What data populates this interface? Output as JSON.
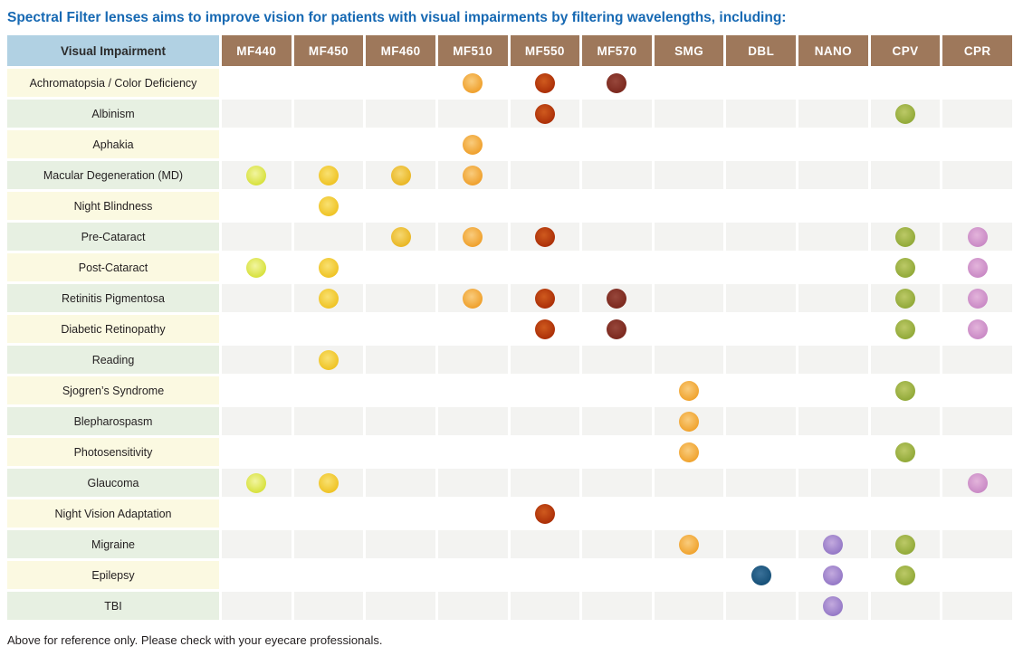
{
  "title": "Spectral Filter lenses aims to improve vision for patients with visual impairments by filtering wavelengths, including:",
  "footnote": "Above for reference only. Please check with your eyecare professionals.",
  "chart_data": {
    "type": "table",
    "header_label": "Visual Impairment",
    "columns": [
      "MF440",
      "MF450",
      "MF460",
      "MF510",
      "MF550",
      "MF570",
      "SMG",
      "DBL",
      "NANO",
      "CPV",
      "CPR"
    ],
    "rows": [
      {
        "label": "Achromatopsia / Color Deficiency",
        "dots": [
          "MF510",
          "MF550",
          "MF570"
        ]
      },
      {
        "label": "Albinism",
        "dots": [
          "MF550",
          "CPV"
        ]
      },
      {
        "label": "Aphakia",
        "dots": [
          "MF510"
        ]
      },
      {
        "label": "Macular Degeneration (MD)",
        "dots": [
          "MF440",
          "MF450",
          "MF460",
          "MF510"
        ]
      },
      {
        "label": "Night Blindness",
        "dots": [
          "MF450"
        ]
      },
      {
        "label": "Pre-Cataract",
        "dots": [
          "MF460",
          "MF510",
          "MF550",
          "CPV",
          "CPR"
        ]
      },
      {
        "label": "Post-Cataract",
        "dots": [
          "MF440",
          "MF450",
          "CPV",
          "CPR"
        ]
      },
      {
        "label": "Retinitis Pigmentosa",
        "dots": [
          "MF450",
          "MF510",
          "MF550",
          "MF570",
          "CPV",
          "CPR"
        ]
      },
      {
        "label": "Diabetic Retinopathy",
        "dots": [
          "MF550",
          "MF570",
          "CPV",
          "CPR"
        ]
      },
      {
        "label": "Reading",
        "dots": [
          "MF450"
        ]
      },
      {
        "label": "Sjogren’s Syndrome",
        "dots": [
          "SMG",
          "CPV"
        ]
      },
      {
        "label": "Blepharospasm",
        "dots": [
          "SMG"
        ]
      },
      {
        "label": "Photosensitivity",
        "dots": [
          "SMG",
          "CPV"
        ]
      },
      {
        "label": "Glaucoma",
        "dots": [
          "MF440",
          "MF450",
          "CPR"
        ]
      },
      {
        "label": "Night Vision Adaptation",
        "dots": [
          "MF550"
        ]
      },
      {
        "label": "Migraine",
        "dots": [
          "SMG",
          "NANO",
          "CPV"
        ]
      },
      {
        "label": "Epilepsy",
        "dots": [
          "DBL",
          "NANO",
          "CPV"
        ]
      },
      {
        "label": "TBI",
        "dots": [
          "NANO"
        ]
      }
    ]
  },
  "colors": {
    "title_text": "#1769b3",
    "header_label_bg": "#b1d1e3",
    "header_column_bg": "#9e785b",
    "row_label_cream": "#fbf9e1",
    "row_label_green": "#e7f0e2",
    "data_cell_white": "#ffffff",
    "data_cell_gray": "#f3f3f1",
    "dots": {
      "MF440": {
        "center": "#f2f5a0",
        "edge": "#d7e13c"
      },
      "MF450": {
        "center": "#f9e171",
        "edge": "#efc324"
      },
      "MF460": {
        "center": "#f6d871",
        "edge": "#e9b623"
      },
      "MF510": {
        "center": "#f9cc7d",
        "edge": "#efa02c"
      },
      "MF550": {
        "center": "#cf5a1e",
        "edge": "#ab2f08"
      },
      "MF570": {
        "center": "#97473b",
        "edge": "#7b281e"
      },
      "SMG": {
        "center": "#f9cc7d",
        "edge": "#f0a32e"
      },
      "DBL": {
        "center": "#3a7199",
        "edge": "#165078"
      },
      "NANO": {
        "center": "#c3aade",
        "edge": "#9478c6"
      },
      "CPV": {
        "center": "#bcc967",
        "edge": "#91a938"
      },
      "CPR": {
        "center": "#e3b4db",
        "edge": "#c989c5"
      }
    }
  }
}
